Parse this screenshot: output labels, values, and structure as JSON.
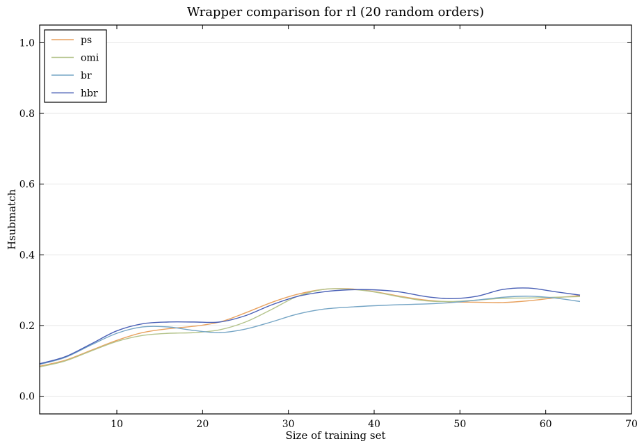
{
  "chart_data": {
    "type": "line",
    "title": "Wrapper comparison for rl (20 random orders)",
    "xlabel": "Size of training set",
    "ylabel": "Hsubmatch",
    "xlim": [
      1,
      70
    ],
    "ylim": [
      -0.05,
      1.05
    ],
    "xticks": [
      10,
      20,
      30,
      40,
      50,
      60,
      70
    ],
    "yticks": [
      0.0,
      0.2,
      0.4,
      0.6,
      0.8,
      1.0
    ],
    "ytick_labels": [
      "0.0",
      "0.2",
      "0.4",
      "0.6",
      "0.8",
      "1.0"
    ],
    "grid": "horizontal",
    "legend_position": "top-left",
    "x": [
      1,
      4,
      7,
      10,
      13,
      16,
      19,
      22,
      25,
      28,
      31,
      34,
      37,
      40,
      43,
      46,
      49,
      52,
      55,
      58,
      61,
      64
    ],
    "series": [
      {
        "name": "ps",
        "color": "#e8a15e",
        "values": [
          0.085,
          0.102,
          0.13,
          0.158,
          0.18,
          0.191,
          0.198,
          0.21,
          0.236,
          0.265,
          0.288,
          0.302,
          0.304,
          0.296,
          0.283,
          0.272,
          0.267,
          0.266,
          0.265,
          0.27,
          0.278,
          0.285
        ]
      },
      {
        "name": "omi",
        "color": "#b3c38a",
        "values": [
          0.083,
          0.1,
          0.128,
          0.155,
          0.172,
          0.178,
          0.18,
          0.188,
          0.21,
          0.245,
          0.282,
          0.302,
          0.303,
          0.295,
          0.281,
          0.27,
          0.268,
          0.272,
          0.277,
          0.278,
          0.28,
          0.282
        ]
      },
      {
        "name": "br",
        "color": "#75a5c5",
        "values": [
          0.09,
          0.11,
          0.145,
          0.178,
          0.196,
          0.196,
          0.186,
          0.18,
          0.19,
          0.21,
          0.232,
          0.246,
          0.252,
          0.256,
          0.259,
          0.261,
          0.265,
          0.272,
          0.28,
          0.283,
          0.278,
          0.268
        ]
      },
      {
        "name": "hbr",
        "color": "#4a60b6",
        "values": [
          0.092,
          0.112,
          0.148,
          0.185,
          0.205,
          0.21,
          0.21,
          0.21,
          0.228,
          0.258,
          0.282,
          0.295,
          0.301,
          0.301,
          0.295,
          0.282,
          0.276,
          0.283,
          0.302,
          0.306,
          0.296,
          0.286
        ]
      }
    ]
  }
}
